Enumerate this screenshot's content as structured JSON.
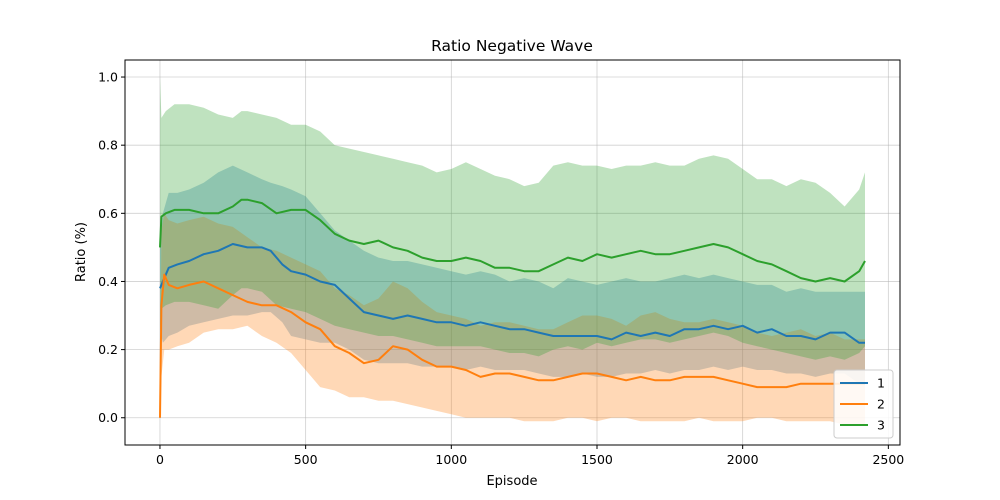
{
  "chart_data": {
    "type": "line",
    "title": "Ratio Negative Wave",
    "xlabel": "Episode",
    "ylabel": "Ratio (%)",
    "xlim": [
      -120,
      2540
    ],
    "ylim": [
      -0.08,
      1.05
    ],
    "xticks": [
      0,
      500,
      1000,
      1500,
      2000,
      2500
    ],
    "yticks": [
      0.0,
      0.2,
      0.4,
      0.6,
      0.8,
      1.0
    ],
    "xtick_labels": [
      "0",
      "500",
      "1000",
      "1500",
      "2000",
      "2500"
    ],
    "ytick_labels": [
      "0.0",
      "0.2",
      "0.4",
      "0.6",
      "0.8",
      "1.0"
    ],
    "grid": true,
    "legend_position": "bottom-right",
    "series": [
      {
        "name": "1",
        "color": "#1f77b4",
        "x": [
          0,
          10,
          30,
          60,
          100,
          150,
          200,
          250,
          300,
          350,
          380,
          420,
          450,
          500,
          550,
          600,
          650,
          700,
          750,
          800,
          850,
          900,
          950,
          1000,
          1050,
          1100,
          1150,
          1200,
          1250,
          1300,
          1350,
          1400,
          1450,
          1500,
          1550,
          1600,
          1650,
          1700,
          1750,
          1800,
          1850,
          1900,
          1950,
          2000,
          2050,
          2100,
          2150,
          2200,
          2250,
          2300,
          2350,
          2400,
          2420
        ],
        "y": [
          0.38,
          0.4,
          0.44,
          0.45,
          0.46,
          0.48,
          0.49,
          0.51,
          0.5,
          0.5,
          0.49,
          0.45,
          0.43,
          0.42,
          0.4,
          0.39,
          0.35,
          0.31,
          0.3,
          0.29,
          0.3,
          0.29,
          0.28,
          0.28,
          0.27,
          0.28,
          0.27,
          0.26,
          0.26,
          0.25,
          0.24,
          0.24,
          0.24,
          0.24,
          0.23,
          0.25,
          0.24,
          0.25,
          0.24,
          0.26,
          0.26,
          0.27,
          0.26,
          0.27,
          0.25,
          0.26,
          0.24,
          0.24,
          0.23,
          0.25,
          0.25,
          0.22,
          0.22
        ],
        "upper": [
          0.5,
          0.6,
          0.66,
          0.66,
          0.67,
          0.69,
          0.72,
          0.74,
          0.72,
          0.7,
          0.69,
          0.68,
          0.67,
          0.65,
          0.6,
          0.55,
          0.52,
          0.49,
          0.47,
          0.46,
          0.46,
          0.45,
          0.44,
          0.43,
          0.42,
          0.43,
          0.42,
          0.4,
          0.41,
          0.4,
          0.38,
          0.41,
          0.4,
          0.39,
          0.4,
          0.41,
          0.4,
          0.4,
          0.41,
          0.42,
          0.41,
          0.42,
          0.41,
          0.4,
          0.39,
          0.39,
          0.37,
          0.38,
          0.37,
          0.37,
          0.37,
          0.37,
          0.37
        ],
        "lower": [
          0.26,
          0.22,
          0.24,
          0.25,
          0.27,
          0.28,
          0.29,
          0.3,
          0.3,
          0.31,
          0.31,
          0.28,
          0.24,
          0.23,
          0.22,
          0.22,
          0.2,
          0.17,
          0.16,
          0.16,
          0.16,
          0.15,
          0.15,
          0.15,
          0.14,
          0.15,
          0.14,
          0.14,
          0.14,
          0.13,
          0.12,
          0.12,
          0.13,
          0.12,
          0.12,
          0.13,
          0.13,
          0.14,
          0.13,
          0.14,
          0.14,
          0.15,
          0.14,
          0.15,
          0.14,
          0.14,
          0.13,
          0.13,
          0.12,
          0.13,
          0.13,
          0.1,
          0.1
        ]
      },
      {
        "name": "2",
        "color": "#ff7f0e",
        "x": [
          0,
          5,
          15,
          30,
          60,
          100,
          150,
          200,
          250,
          300,
          350,
          400,
          450,
          500,
          550,
          600,
          650,
          700,
          750,
          800,
          850,
          900,
          950,
          1000,
          1050,
          1100,
          1150,
          1200,
          1250,
          1300,
          1350,
          1400,
          1450,
          1500,
          1550,
          1600,
          1650,
          1700,
          1750,
          1800,
          1850,
          1900,
          1950,
          2000,
          2050,
          2100,
          2150,
          2200,
          2250,
          2300,
          2350,
          2400,
          2420
        ],
        "y": [
          0.0,
          0.33,
          0.42,
          0.39,
          0.38,
          0.39,
          0.4,
          0.38,
          0.36,
          0.34,
          0.33,
          0.33,
          0.31,
          0.28,
          0.26,
          0.21,
          0.19,
          0.16,
          0.17,
          0.21,
          0.2,
          0.17,
          0.15,
          0.15,
          0.14,
          0.12,
          0.13,
          0.13,
          0.12,
          0.11,
          0.11,
          0.12,
          0.13,
          0.13,
          0.12,
          0.11,
          0.12,
          0.11,
          0.11,
          0.12,
          0.12,
          0.12,
          0.11,
          0.1,
          0.09,
          0.09,
          0.09,
          0.1,
          0.1,
          0.1,
          0.1,
          0.1,
          0.1
        ],
        "upper": [
          0.0,
          0.55,
          0.6,
          0.58,
          0.57,
          0.58,
          0.59,
          0.57,
          0.56,
          0.53,
          0.5,
          0.49,
          0.47,
          0.45,
          0.43,
          0.38,
          0.36,
          0.33,
          0.35,
          0.4,
          0.38,
          0.34,
          0.31,
          0.3,
          0.29,
          0.27,
          0.28,
          0.28,
          0.27,
          0.26,
          0.26,
          0.28,
          0.3,
          0.3,
          0.29,
          0.27,
          0.3,
          0.31,
          0.29,
          0.28,
          0.28,
          0.29,
          0.28,
          0.27,
          0.25,
          0.24,
          0.25,
          0.26,
          0.24,
          0.25,
          0.23,
          0.23,
          0.23
        ],
        "lower": [
          0.0,
          0.12,
          0.2,
          0.2,
          0.21,
          0.22,
          0.25,
          0.26,
          0.26,
          0.27,
          0.24,
          0.22,
          0.19,
          0.14,
          0.09,
          0.08,
          0.06,
          0.06,
          0.05,
          0.05,
          0.04,
          0.03,
          0.02,
          0.01,
          0.0,
          0.0,
          0.0,
          0.0,
          -0.01,
          -0.01,
          -0.01,
          0.0,
          0.0,
          -0.01,
          0.0,
          0.0,
          -0.01,
          -0.01,
          -0.01,
          -0.01,
          0.0,
          -0.01,
          -0.01,
          -0.01,
          0.0,
          0.0,
          -0.01,
          -0.01,
          -0.01,
          -0.01,
          -0.02,
          -0.02,
          -0.02
        ]
      },
      {
        "name": "3",
        "color": "#2ca02c",
        "x": [
          0,
          5,
          20,
          50,
          100,
          150,
          200,
          250,
          280,
          300,
          350,
          400,
          450,
          500,
          550,
          600,
          650,
          700,
          750,
          800,
          850,
          900,
          950,
          1000,
          1050,
          1100,
          1150,
          1200,
          1250,
          1300,
          1350,
          1400,
          1450,
          1500,
          1550,
          1600,
          1650,
          1700,
          1750,
          1800,
          1850,
          1900,
          1950,
          2000,
          2050,
          2100,
          2150,
          2200,
          2250,
          2300,
          2350,
          2400,
          2420
        ],
        "y": [
          0.5,
          0.59,
          0.6,
          0.61,
          0.61,
          0.6,
          0.6,
          0.62,
          0.64,
          0.64,
          0.63,
          0.6,
          0.61,
          0.61,
          0.58,
          0.54,
          0.52,
          0.51,
          0.52,
          0.5,
          0.49,
          0.47,
          0.46,
          0.46,
          0.47,
          0.46,
          0.44,
          0.44,
          0.43,
          0.43,
          0.45,
          0.47,
          0.46,
          0.48,
          0.47,
          0.48,
          0.49,
          0.48,
          0.48,
          0.49,
          0.5,
          0.51,
          0.5,
          0.48,
          0.46,
          0.45,
          0.43,
          0.41,
          0.4,
          0.41,
          0.4,
          0.43,
          0.46
        ],
        "upper": [
          1.0,
          0.88,
          0.9,
          0.92,
          0.92,
          0.91,
          0.89,
          0.88,
          0.9,
          0.9,
          0.89,
          0.88,
          0.86,
          0.86,
          0.84,
          0.8,
          0.79,
          0.78,
          0.77,
          0.76,
          0.75,
          0.74,
          0.72,
          0.73,
          0.75,
          0.73,
          0.71,
          0.7,
          0.68,
          0.69,
          0.74,
          0.75,
          0.74,
          0.74,
          0.73,
          0.74,
          0.74,
          0.75,
          0.74,
          0.74,
          0.76,
          0.77,
          0.76,
          0.73,
          0.7,
          0.7,
          0.68,
          0.7,
          0.69,
          0.66,
          0.62,
          0.67,
          0.72
        ],
        "lower": [
          0.25,
          0.32,
          0.33,
          0.34,
          0.34,
          0.33,
          0.32,
          0.36,
          0.38,
          0.38,
          0.37,
          0.33,
          0.32,
          0.31,
          0.29,
          0.27,
          0.26,
          0.25,
          0.24,
          0.24,
          0.23,
          0.22,
          0.21,
          0.21,
          0.21,
          0.21,
          0.2,
          0.19,
          0.19,
          0.18,
          0.2,
          0.21,
          0.2,
          0.22,
          0.21,
          0.22,
          0.23,
          0.23,
          0.22,
          0.23,
          0.24,
          0.25,
          0.24,
          0.22,
          0.21,
          0.2,
          0.19,
          0.18,
          0.17,
          0.18,
          0.17,
          0.19,
          0.21
        ]
      }
    ]
  }
}
